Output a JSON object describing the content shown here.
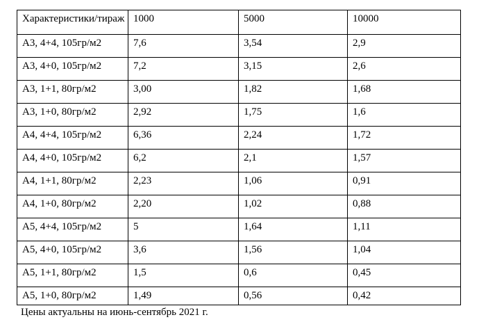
{
  "colors": {
    "background": "#ffffff",
    "border": "#000000",
    "text": "#000000"
  },
  "table": {
    "columns": [
      "Характеристики/тираж",
      "1000",
      "5000",
      "10000"
    ],
    "rows": [
      {
        "label": "А3, 4+4, 105гр/м2",
        "values": [
          "7,6",
          "3,54",
          "2,9"
        ]
      },
      {
        "label": "А3, 4+0, 105гр/м2",
        "values": [
          "7,2",
          "3,15",
          "2,6"
        ]
      },
      {
        "label": "А3, 1+1, 80гр/м2",
        "values": [
          "3,00",
          "1,82",
          "1,68"
        ]
      },
      {
        "label": "А3, 1+0, 80гр/м2",
        "values": [
          "2,92",
          "1,75",
          "1,6"
        ]
      },
      {
        "label": "А4, 4+4, 105гр/м2",
        "values": [
          "6,36",
          "2,24",
          "1,72"
        ]
      },
      {
        "label": "А4, 4+0, 105гр/м2",
        "values": [
          "6,2",
          "2,1",
          "1,57"
        ]
      },
      {
        "label": "А4, 1+1, 80гр/м2",
        "values": [
          "2,23",
          "1,06",
          "0,91"
        ]
      },
      {
        "label": "А4, 1+0, 80гр/м2",
        "values": [
          "2,20",
          "1,02",
          "0,88"
        ]
      },
      {
        "label": "А5, 4+4, 105гр/м2",
        "values": [
          "5",
          "1,64",
          "1,11"
        ]
      },
      {
        "label": "А5, 4+0, 105гр/м2",
        "values": [
          "3,6",
          "1,56",
          "1,04"
        ]
      },
      {
        "label": "А5, 1+1, 80гр/м2",
        "values": [
          "1,5",
          "0,6",
          "0,45"
        ]
      },
      {
        "label": "А5, 1+0, 80гр/м2",
        "values": [
          "1,49",
          "0,56",
          "0,42"
        ]
      }
    ]
  },
  "footer": {
    "note": "Цены актуальны на июнь-сентябрь 2021 г."
  }
}
